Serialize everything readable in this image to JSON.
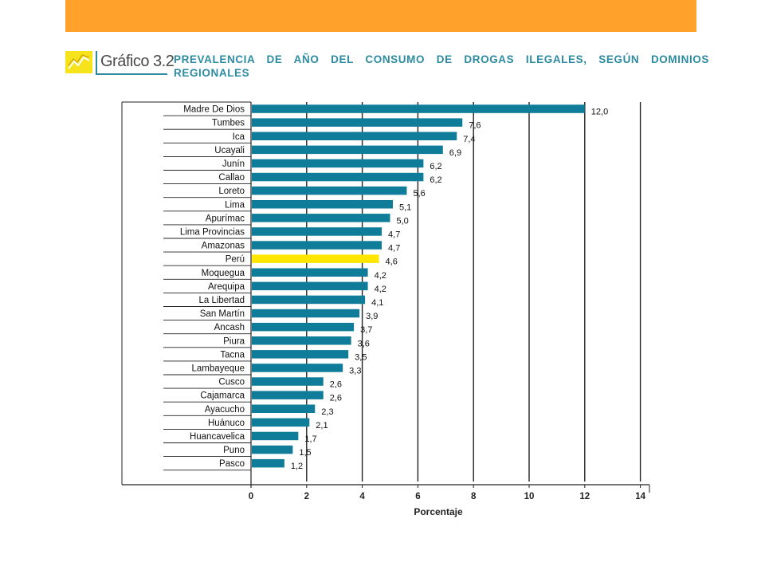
{
  "header": {
    "grafico_label": "Gráfico 3.2",
    "title": "PREVALENCIA DE AÑO DEL CONSUMO DE DROGAS ILEGALES, SEGÚN DOMINIOS REGIONALES"
  },
  "colors": {
    "top_bar": "#FFA12B",
    "bar": "#0F7D99",
    "highlight_bar": "#FFE600",
    "title": "#2c8ba2",
    "logo": "#F7E31C"
  },
  "chart_data": {
    "type": "bar",
    "orientation": "horizontal",
    "categories": [
      "Madre De Dios",
      "Tumbes",
      "Ica",
      "Ucayali",
      "Junín",
      "Callao",
      "Loreto",
      "Lima",
      "Apurímac",
      "Lima Provincias",
      "Amazonas",
      "Perú",
      "Moquegua",
      "Arequipa",
      "La Libertad",
      "San Martín",
      "Ancash",
      "Piura",
      "Tacna",
      "Lambayeque",
      "Cusco",
      "Cajamarca",
      "Ayacucho",
      "Huánuco",
      "Huancavelica",
      "Puno",
      "Pasco"
    ],
    "values": [
      12.0,
      7.6,
      7.4,
      6.9,
      6.2,
      6.2,
      5.6,
      5.1,
      5.0,
      4.7,
      4.7,
      4.6,
      4.2,
      4.2,
      4.1,
      3.9,
      3.7,
      3.6,
      3.5,
      3.3,
      2.6,
      2.6,
      2.3,
      2.1,
      1.7,
      1.5,
      1.2
    ],
    "value_labels": [
      "12,0",
      "7,6",
      "7,4",
      "6,9",
      "6,2",
      "6,2",
      "5,6",
      "5,1",
      "5,0",
      "4,7",
      "4,7",
      "4,6",
      "4,2",
      "4,2",
      "4,1",
      "3,9",
      "3,7",
      "3,6",
      "3,5",
      "3,3",
      "2,6",
      "2,6",
      "2,3",
      "2,1",
      "1,7",
      "1,5",
      "1,2"
    ],
    "highlight": "Perú",
    "xlabel": "Porcentaje",
    "ylabel": "",
    "xlim": [
      0,
      14
    ],
    "xticks": [
      0,
      2,
      4,
      6,
      8,
      10,
      12,
      14
    ],
    "xtick_labels": [
      "0",
      "2",
      "4",
      "6",
      "8",
      "10",
      "12",
      "14"
    ],
    "grid": true
  }
}
